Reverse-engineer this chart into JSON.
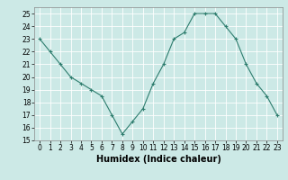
{
  "x": [
    0,
    1,
    2,
    3,
    4,
    5,
    6,
    7,
    8,
    9,
    10,
    11,
    12,
    13,
    14,
    15,
    16,
    17,
    18,
    19,
    20,
    21,
    22,
    23
  ],
  "y": [
    23,
    22,
    21,
    20,
    19.5,
    19,
    18.5,
    17,
    15.5,
    16.5,
    17.5,
    19.5,
    21,
    23,
    23.5,
    25,
    25,
    25,
    24,
    23,
    21,
    19.5,
    18.5,
    17
  ],
  "line_color": "#2e7d6e",
  "marker": "+",
  "bg_color": "#cce9e6",
  "grid_color": "#ffffff",
  "xlabel": "Humidex (Indice chaleur)",
  "xlim": [
    -0.5,
    23.5
  ],
  "ylim": [
    15,
    25.5
  ],
  "yticks": [
    15,
    16,
    17,
    18,
    19,
    20,
    21,
    22,
    23,
    24,
    25
  ],
  "xticks": [
    0,
    1,
    2,
    3,
    4,
    5,
    6,
    7,
    8,
    9,
    10,
    11,
    12,
    13,
    14,
    15,
    16,
    17,
    18,
    19,
    20,
    21,
    22,
    23
  ],
  "label_fontsize": 7,
  "tick_fontsize": 5.5
}
